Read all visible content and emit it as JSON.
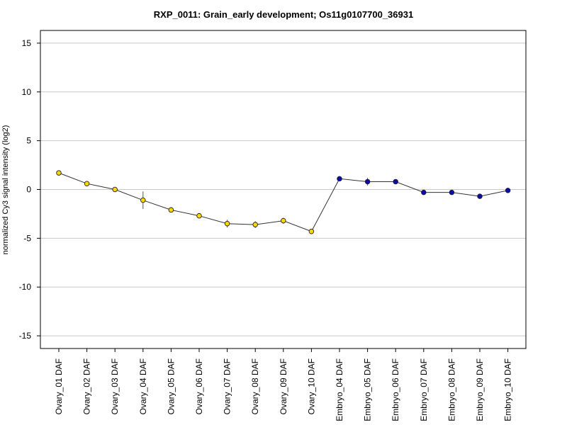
{
  "chart_data": {
    "type": "line",
    "title": "RXP_0011: Grain_early development; Os11g0107700_36931",
    "xlabel": "",
    "ylabel": "normalized Cy3 signal intensity (log2)",
    "categories": [
      "Ovary_01 DAF",
      "Ovary_02 DAF",
      "Ovary_03 DAF",
      "Ovary_04 DAF",
      "Ovary_05 DAF",
      "Ovary_06 DAF",
      "Ovary_07 DAF",
      "Ovary_08 DAF",
      "Ovary_09 DAF",
      "Ovary_10 DAF",
      "Embryo_04 DAF",
      "Embryo_05 DAF",
      "Embryo_06 DAF",
      "Embryo_07 DAF",
      "Embryo_08 DAF",
      "Embryo_09 DAF",
      "Embryo_10 DAF"
    ],
    "series": [
      {
        "values": [
          1.7,
          0.6,
          0.0,
          -1.1,
          -2.1,
          -2.7,
          -3.5,
          -3.6,
          -3.2,
          -4.3,
          1.1,
          0.8,
          0.8,
          -0.3,
          -0.3,
          -0.7,
          -0.1
        ],
        "errors": [
          0.15,
          0.15,
          0.15,
          0.9,
          0.15,
          0.15,
          0.4,
          0.35,
          0.3,
          0.25,
          0.15,
          0.4,
          0.25,
          0.2,
          0.15,
          0.15,
          0.15
        ]
      }
    ],
    "point_colors": [
      "#ffd700",
      "#ffd700",
      "#ffd700",
      "#ffd700",
      "#ffd700",
      "#ffd700",
      "#ffd700",
      "#ffd700",
      "#ffd700",
      "#ffd700",
      "#0a0ab4",
      "#0a0ab4",
      "#0a0ab4",
      "#0a0ab4",
      "#0a0ab4",
      "#0a0ab4",
      "#0a0ab4"
    ],
    "line_color": "#333333",
    "grid_color": "#c8c8c8",
    "ylim": [
      -16.3,
      16.3
    ],
    "yticks": [
      -15,
      -10,
      -5,
      0,
      5,
      10,
      15
    ],
    "ytick_labels": [
      "-15",
      "-10",
      "-5",
      "0",
      "5",
      "10",
      "15"
    ],
    "grid": true
  }
}
